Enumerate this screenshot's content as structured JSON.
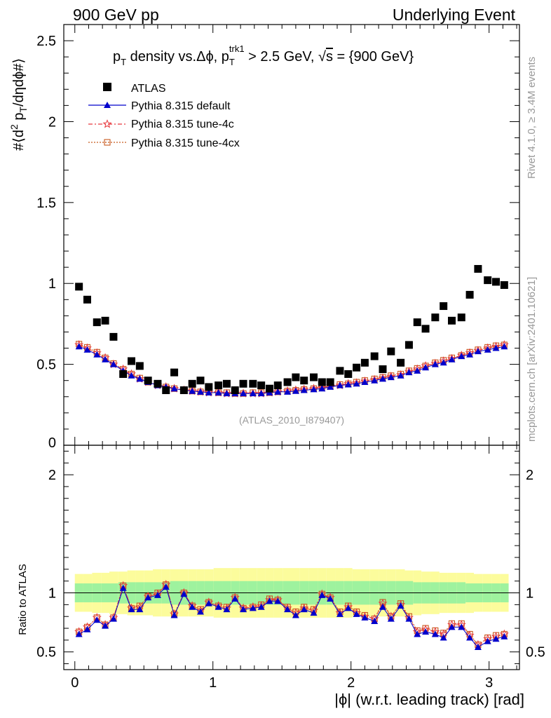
{
  "header": {
    "left": "900 GeV pp",
    "right": "Underlying Event"
  },
  "side": {
    "rivet": "Rivet 4.1.0, ≥ 3.4M events",
    "mcplots": "mcplots.cern.ch [arXiv:2401.10621]"
  },
  "chart_data": {
    "type": "scatter",
    "title": "p_T density vs.Δϕ, p_T^trk1 > 2.5 GeV, √s = {900 GeV}",
    "title_parts": {
      "p": "p",
      "T": "T",
      "density": " density vs.Δϕ, p",
      "trk1": "trk1",
      "cut": " > 2.5 GeV, √",
      "s": "s",
      "energy": " = {900 GeV}"
    },
    "watermark": "(ATLAS_2010_I879407)",
    "ylabel": "#⟨d² p_T/dηdϕ#⟩",
    "ylabel_parts": {
      "pre": "#⟨d",
      "sup": "2",
      "p": " p",
      "T": "T",
      "post": "/dηdϕ#⟩"
    },
    "xlabel": "|ϕ| (w.r.t. leading track) [rad]",
    "ratio_ylabel": "Ratio to ATLAS",
    "xlim": [
      -0.08,
      3.22
    ],
    "ylim": [
      0,
      2.6
    ],
    "ratio_ylim": [
      0.35,
      2.25
    ],
    "x_ticks": [
      "0",
      "1",
      "2",
      "3"
    ],
    "y_ticks": [
      "0.5",
      "1",
      "1.5",
      "2",
      "2.5"
    ],
    "ratio_ticks": [
      "0.5",
      "1",
      "2"
    ],
    "legend": {
      "atlas": "ATLAS",
      "default": "Pythia 8.315 default",
      "tune4c": "Pythia 8.315 tune-4c",
      "tune4cx": "Pythia 8.315 tune-4cx"
    },
    "colors": {
      "atlas": "#000000",
      "default": "#0000cc",
      "tune4c": "#e8383d",
      "tune4cx": "#c85a1e",
      "band_inner": "#9ef29e",
      "band_outer": "#fcfc9c"
    },
    "x": [
      0.03,
      0.09,
      0.16,
      0.22,
      0.28,
      0.35,
      0.41,
      0.47,
      0.53,
      0.6,
      0.66,
      0.72,
      0.79,
      0.85,
      0.91,
      0.97,
      1.04,
      1.1,
      1.16,
      1.22,
      1.29,
      1.35,
      1.41,
      1.47,
      1.54,
      1.6,
      1.66,
      1.73,
      1.79,
      1.85,
      1.92,
      1.98,
      2.04,
      2.1,
      2.17,
      2.23,
      2.29,
      2.36,
      2.42,
      2.48,
      2.54,
      2.61,
      2.67,
      2.73,
      2.8,
      2.86,
      2.92,
      2.99,
      3.05,
      3.11
    ],
    "series": [
      {
        "name": "ATLAS",
        "values": [
          0.98,
          0.9,
          0.76,
          0.77,
          0.67,
          0.44,
          0.52,
          0.49,
          0.4,
          0.38,
          0.34,
          0.45,
          0.34,
          0.38,
          0.4,
          0.36,
          0.37,
          0.38,
          0.34,
          0.38,
          0.38,
          0.37,
          0.35,
          0.37,
          0.39,
          0.42,
          0.4,
          0.42,
          0.39,
          0.39,
          0.46,
          0.44,
          0.48,
          0.51,
          0.55,
          0.47,
          0.58,
          0.51,
          0.62,
          0.76,
          0.72,
          0.79,
          0.86,
          0.77,
          0.79,
          0.93,
          1.09,
          1.02,
          1.01,
          0.99
        ]
      },
      {
        "name": "Pythia 8.315 default",
        "values": [
          0.61,
          0.59,
          0.56,
          0.53,
          0.5,
          0.46,
          0.43,
          0.41,
          0.39,
          0.37,
          0.36,
          0.35,
          0.34,
          0.335,
          0.33,
          0.325,
          0.325,
          0.32,
          0.32,
          0.32,
          0.32,
          0.32,
          0.325,
          0.33,
          0.33,
          0.335,
          0.34,
          0.345,
          0.35,
          0.36,
          0.37,
          0.375,
          0.38,
          0.39,
          0.4,
          0.41,
          0.42,
          0.43,
          0.45,
          0.46,
          0.48,
          0.5,
          0.51,
          0.53,
          0.55,
          0.56,
          0.58,
          0.59,
          0.6,
          0.61
        ]
      },
      {
        "name": "Pythia 8.315 tune-4c",
        "values": [
          0.62,
          0.6,
          0.57,
          0.54,
          0.5,
          0.47,
          0.44,
          0.41,
          0.39,
          0.37,
          0.36,
          0.35,
          0.34,
          0.335,
          0.33,
          0.325,
          0.325,
          0.32,
          0.32,
          0.32,
          0.32,
          0.32,
          0.325,
          0.33,
          0.335,
          0.34,
          0.345,
          0.35,
          0.355,
          0.365,
          0.37,
          0.38,
          0.385,
          0.395,
          0.405,
          0.415,
          0.425,
          0.435,
          0.455,
          0.47,
          0.49,
          0.505,
          0.52,
          0.535,
          0.555,
          0.57,
          0.585,
          0.6,
          0.61,
          0.62
        ]
      },
      {
        "name": "Pythia 8.315 tune-4cx",
        "values": [
          0.625,
          0.605,
          0.575,
          0.54,
          0.505,
          0.47,
          0.44,
          0.415,
          0.39,
          0.375,
          0.36,
          0.35,
          0.34,
          0.335,
          0.33,
          0.33,
          0.325,
          0.325,
          0.32,
          0.32,
          0.325,
          0.325,
          0.325,
          0.33,
          0.335,
          0.34,
          0.345,
          0.35,
          0.36,
          0.365,
          0.375,
          0.38,
          0.39,
          0.4,
          0.41,
          0.42,
          0.43,
          0.44,
          0.46,
          0.475,
          0.49,
          0.51,
          0.525,
          0.54,
          0.555,
          0.575,
          0.59,
          0.605,
          0.615,
          0.62
        ]
      }
    ],
    "ratio": [
      {
        "name": "Pythia 8.315 default",
        "values": [
          0.65,
          0.69,
          0.77,
          0.72,
          0.78,
          1.04,
          0.86,
          0.86,
          0.96,
          0.98,
          1.05,
          0.81,
          0.99,
          0.88,
          0.84,
          0.91,
          0.88,
          0.86,
          0.95,
          0.86,
          0.87,
          0.88,
          0.93,
          0.93,
          0.86,
          0.81,
          0.86,
          0.83,
          0.98,
          0.95,
          0.82,
          0.87,
          0.82,
          0.79,
          0.76,
          0.88,
          0.78,
          0.89,
          0.78,
          0.65,
          0.67,
          0.65,
          0.62,
          0.71,
          0.71,
          0.62,
          0.54,
          0.59,
          0.61,
          0.63
        ]
      },
      {
        "name": "Pythia 8.315 tune-4c",
        "values": [
          0.67,
          0.71,
          0.79,
          0.73,
          0.79,
          1.06,
          0.87,
          0.88,
          0.97,
          0.99,
          1.07,
          0.82,
          1.0,
          0.89,
          0.85,
          0.92,
          0.89,
          0.87,
          0.96,
          0.87,
          0.88,
          0.89,
          0.94,
          0.94,
          0.87,
          0.83,
          0.87,
          0.85,
          0.99,
          0.96,
          0.83,
          0.88,
          0.83,
          0.8,
          0.78,
          0.91,
          0.8,
          0.9,
          0.79,
          0.67,
          0.69,
          0.67,
          0.65,
          0.73,
          0.73,
          0.64,
          0.56,
          0.61,
          0.63,
          0.65
        ]
      },
      {
        "name": "Pythia 8.315 tune-4cx",
        "values": [
          0.67,
          0.71,
          0.79,
          0.73,
          0.79,
          1.06,
          0.87,
          0.89,
          0.97,
          1.0,
          1.07,
          0.82,
          1.0,
          0.89,
          0.86,
          0.92,
          0.89,
          0.88,
          0.96,
          0.87,
          0.88,
          0.9,
          0.95,
          0.94,
          0.88,
          0.84,
          0.88,
          0.86,
          0.99,
          0.96,
          0.84,
          0.89,
          0.84,
          0.81,
          0.78,
          0.92,
          0.8,
          0.91,
          0.8,
          0.68,
          0.7,
          0.68,
          0.66,
          0.74,
          0.74,
          0.65,
          0.56,
          0.62,
          0.64,
          0.65
        ]
      }
    ],
    "band_inner": [
      0.08,
      0.08,
      0.08,
      0.08,
      0.08,
      0.09,
      0.09,
      0.09,
      0.09,
      0.09,
      0.09,
      0.1,
      0.1,
      0.1,
      0.1,
      0.1,
      0.1,
      0.1,
      0.1,
      0.1,
      0.1,
      0.1,
      0.1,
      0.1,
      0.1,
      0.1,
      0.1,
      0.1,
      0.1,
      0.1,
      0.1,
      0.1,
      0.1,
      0.1,
      0.1,
      0.1,
      0.1,
      0.1,
      0.1,
      0.09,
      0.09,
      0.09,
      0.09,
      0.09,
      0.09,
      0.08,
      0.08,
      0.08,
      0.08,
      0.08
    ],
    "band_outer": [
      0.16,
      0.16,
      0.17,
      0.17,
      0.18,
      0.18,
      0.19,
      0.19,
      0.19,
      0.2,
      0.2,
      0.2,
      0.2,
      0.2,
      0.2,
      0.2,
      0.21,
      0.21,
      0.21,
      0.21,
      0.21,
      0.21,
      0.21,
      0.21,
      0.21,
      0.21,
      0.21,
      0.21,
      0.21,
      0.21,
      0.21,
      0.21,
      0.2,
      0.2,
      0.2,
      0.2,
      0.2,
      0.2,
      0.19,
      0.19,
      0.18,
      0.18,
      0.17,
      0.17,
      0.17,
      0.17,
      0.16,
      0.16,
      0.16,
      0.16
    ]
  }
}
